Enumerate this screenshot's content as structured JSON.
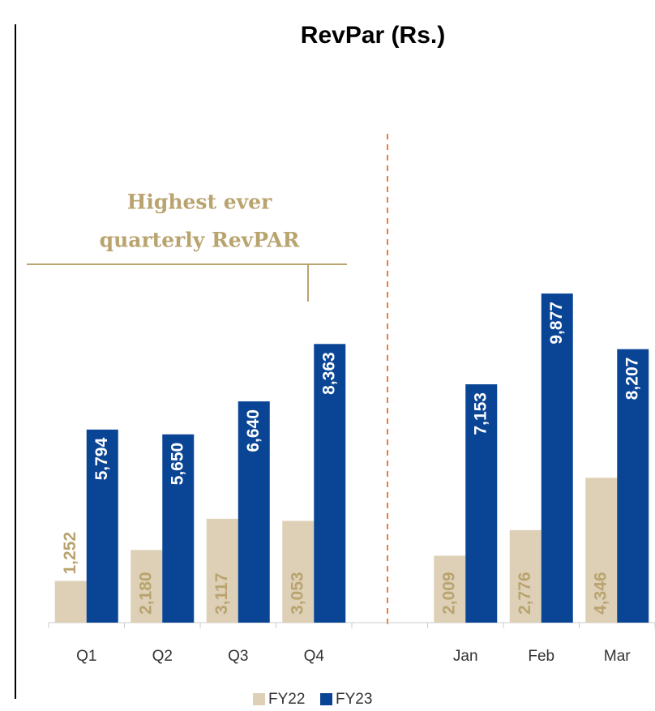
{
  "chart_data": {
    "type": "bar",
    "title": "RevPar (Rs.)",
    "annotation": [
      "Highest ever",
      "quarterly RevPAR"
    ],
    "categories": [
      "Q1",
      "Q2",
      "Q3",
      "Q4",
      null,
      "Jan",
      "Feb",
      "Mar"
    ],
    "series": [
      {
        "name": "FY22",
        "color": "#ddd0b6",
        "label_color": "#b9a36f",
        "values": [
          1252,
          2180,
          3117,
          3053,
          null,
          2009,
          2776,
          4346
        ],
        "value_labels": [
          "1,252",
          "2,180",
          "3,117",
          "3,053",
          null,
          "2,009",
          "2,776",
          "4,346"
        ]
      },
      {
        "name": "FY23",
        "color": "#0a4595",
        "label_color": "#ffffff",
        "values": [
          5794,
          5650,
          6640,
          8363,
          null,
          7153,
          9877,
          8207
        ],
        "value_labels": [
          "5,794",
          "5,650",
          "6,640",
          "8,363",
          null,
          "7,153",
          "9,877",
          "8,207"
        ]
      }
    ],
    "ylim": [
      0,
      10000
    ],
    "legend": "bottom"
  }
}
